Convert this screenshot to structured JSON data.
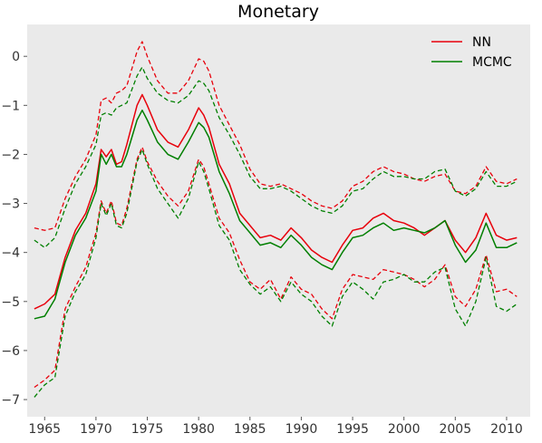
{
  "chart_data": {
    "type": "line",
    "title": "Monetary",
    "xlabel": "",
    "ylabel": "",
    "xlim": [
      1963.3,
      2012.3
    ],
    "ylim": [
      -7.35,
      0.65
    ],
    "x_ticks": [
      1965,
      1970,
      1975,
      1980,
      1985,
      1990,
      1995,
      2000,
      2005,
      2010
    ],
    "x_tick_labels": [
      "1965",
      "1970",
      "1975",
      "1980",
      "1985",
      "1990",
      "1995",
      "2000",
      "2005",
      "2010"
    ],
    "y_ticks": [
      0,
      -1,
      -2,
      -3,
      -4,
      -5,
      -6,
      -7
    ],
    "y_tick_labels": [
      "0",
      "−1",
      "−2",
      "−3",
      "−4",
      "−5",
      "−6",
      "−7"
    ],
    "grid": false,
    "background": "#eaeaea",
    "legend_position": "top-right",
    "legend": [
      {
        "label": "NN",
        "color": "#e8000b"
      },
      {
        "label": "MCMC",
        "color": "#007f00"
      }
    ],
    "series": [
      {
        "name": "NN",
        "role": "mean",
        "color": "#e8000b",
        "dash": "solid",
        "x": [
          1964,
          1965,
          1966,
          1967,
          1968,
          1969,
          1970,
          1970.5,
          1971,
          1971.5,
          1972,
          1972.5,
          1973,
          1974,
          1974.5,
          1975,
          1976,
          1977,
          1978,
          1979,
          1980,
          1980.5,
          1981,
          1982,
          1983,
          1984,
          1985,
          1986,
          1987,
          1988,
          1989,
          1990,
          1991,
          1992,
          1993,
          1994,
          1995,
          1996,
          1997,
          1998,
          1999,
          2000,
          2001,
          2002,
          2003,
          2004,
          2005,
          2006,
          2007,
          2008,
          2009,
          2010,
          2011
        ],
        "y": [
          -5.15,
          -5.05,
          -4.85,
          -4.1,
          -3.55,
          -3.2,
          -2.6,
          -1.9,
          -2.05,
          -1.9,
          -2.2,
          -2.15,
          -1.8,
          -1.0,
          -0.78,
          -1.0,
          -1.5,
          -1.75,
          -1.85,
          -1.5,
          -1.05,
          -1.2,
          -1.45,
          -2.2,
          -2.6,
          -3.2,
          -3.45,
          -3.7,
          -3.65,
          -3.75,
          -3.5,
          -3.7,
          -3.95,
          -4.1,
          -4.2,
          -3.85,
          -3.55,
          -3.5,
          -3.3,
          -3.2,
          -3.35,
          -3.4,
          -3.5,
          -3.65,
          -3.5,
          -3.35,
          -3.75,
          -4.0,
          -3.7,
          -3.2,
          -3.65,
          -3.75,
          -3.7
        ]
      },
      {
        "name": "NN",
        "role": "upper band",
        "color": "#e8000b",
        "dash": "dashed",
        "x": [
          1964,
          1965,
          1966,
          1967,
          1968,
          1969,
          1970,
          1970.5,
          1971,
          1971.5,
          1972,
          1972.5,
          1973,
          1974,
          1974.5,
          1975,
          1976,
          1977,
          1978,
          1979,
          1980,
          1980.5,
          1981,
          1982,
          1983,
          1984,
          1985,
          1986,
          1987,
          1988,
          1989,
          1990,
          1991,
          1992,
          1993,
          1994,
          1995,
          1996,
          1997,
          1998,
          1999,
          2000,
          2001,
          2002,
          2003,
          2004,
          2005,
          2006,
          2007,
          2008,
          2009,
          2010,
          2011
        ],
        "y": [
          -3.5,
          -3.55,
          -3.5,
          -2.9,
          -2.45,
          -2.1,
          -1.6,
          -0.9,
          -0.85,
          -0.95,
          -0.75,
          -0.7,
          -0.6,
          0.1,
          0.3,
          0.0,
          -0.5,
          -0.75,
          -0.75,
          -0.5,
          -0.05,
          -0.1,
          -0.3,
          -1.0,
          -1.4,
          -1.8,
          -2.3,
          -2.6,
          -2.65,
          -2.6,
          -2.7,
          -2.8,
          -2.95,
          -3.05,
          -3.1,
          -2.95,
          -2.65,
          -2.55,
          -2.35,
          -2.25,
          -2.35,
          -2.4,
          -2.5,
          -2.55,
          -2.45,
          -2.4,
          -2.75,
          -2.8,
          -2.65,
          -2.25,
          -2.55,
          -2.6,
          -2.5
        ]
      },
      {
        "name": "NN",
        "role": "lower band",
        "color": "#e8000b",
        "dash": "dashed",
        "x": [
          1964,
          1965,
          1966,
          1967,
          1968,
          1969,
          1970,
          1970.5,
          1971,
          1971.5,
          1972,
          1972.5,
          1973,
          1974,
          1974.5,
          1975,
          1976,
          1977,
          1978,
          1979,
          1980,
          1980.5,
          1981,
          1982,
          1983,
          1984,
          1985,
          1986,
          1987,
          1988,
          1989,
          1990,
          1991,
          1992,
          1993,
          1994,
          1995,
          1996,
          1997,
          1998,
          1999,
          2000,
          2001,
          2002,
          2003,
          2004,
          2005,
          2006,
          2007,
          2008,
          2009,
          2010,
          2011
        ],
        "y": [
          -6.75,
          -6.6,
          -6.4,
          -5.15,
          -4.7,
          -4.3,
          -3.6,
          -2.95,
          -3.2,
          -2.95,
          -3.4,
          -3.45,
          -3.1,
          -2.1,
          -1.85,
          -2.15,
          -2.55,
          -2.85,
          -3.05,
          -2.75,
          -2.1,
          -2.25,
          -2.6,
          -3.3,
          -3.6,
          -4.15,
          -4.6,
          -4.75,
          -4.55,
          -4.95,
          -4.5,
          -4.75,
          -4.85,
          -5.15,
          -5.35,
          -4.75,
          -4.45,
          -4.5,
          -4.55,
          -4.35,
          -4.4,
          -4.45,
          -4.55,
          -4.7,
          -4.55,
          -4.25,
          -4.9,
          -5.1,
          -4.75,
          -4.05,
          -4.8,
          -4.75,
          -4.9
        ]
      },
      {
        "name": "MCMC",
        "role": "mean",
        "color": "#007f00",
        "dash": "solid",
        "x": [
          1964,
          1965,
          1966,
          1967,
          1968,
          1969,
          1970,
          1970.5,
          1971,
          1971.5,
          1972,
          1972.5,
          1973,
          1974,
          1974.5,
          1975,
          1976,
          1977,
          1978,
          1979,
          1980,
          1980.5,
          1981,
          1982,
          1983,
          1984,
          1985,
          1986,
          1987,
          1988,
          1989,
          1990,
          1991,
          1992,
          1993,
          1994,
          1995,
          1996,
          1997,
          1998,
          1999,
          2000,
          2001,
          2002,
          2003,
          2004,
          2005,
          2006,
          2007,
          2008,
          2009,
          2010,
          2011
        ],
        "y": [
          -5.35,
          -5.3,
          -4.95,
          -4.2,
          -3.65,
          -3.3,
          -2.75,
          -2.0,
          -2.2,
          -2.0,
          -2.25,
          -2.25,
          -2.0,
          -1.3,
          -1.1,
          -1.3,
          -1.75,
          -2.0,
          -2.1,
          -1.75,
          -1.35,
          -1.45,
          -1.65,
          -2.35,
          -2.8,
          -3.35,
          -3.6,
          -3.85,
          -3.8,
          -3.9,
          -3.65,
          -3.85,
          -4.1,
          -4.25,
          -4.35,
          -4.0,
          -3.7,
          -3.65,
          -3.5,
          -3.4,
          -3.55,
          -3.5,
          -3.55,
          -3.6,
          -3.5,
          -3.35,
          -3.85,
          -4.2,
          -3.95,
          -3.4,
          -3.9,
          -3.9,
          -3.8
        ]
      },
      {
        "name": "MCMC",
        "role": "upper band",
        "color": "#007f00",
        "dash": "dashed",
        "x": [
          1964,
          1965,
          1966,
          1967,
          1968,
          1969,
          1970,
          1970.5,
          1971,
          1971.5,
          1972,
          1972.5,
          1973,
          1974,
          1974.5,
          1975,
          1976,
          1977,
          1978,
          1979,
          1980,
          1980.5,
          1981,
          1982,
          1983,
          1984,
          1985,
          1986,
          1987,
          1988,
          1989,
          1990,
          1991,
          1992,
          1993,
          1994,
          1995,
          1996,
          1997,
          1998,
          1999,
          2000,
          2001,
          2002,
          2003,
          2004,
          2005,
          2006,
          2007,
          2008,
          2009,
          2010,
          2011
        ],
        "y": [
          -3.75,
          -3.9,
          -3.7,
          -3.1,
          -2.6,
          -2.25,
          -1.8,
          -1.2,
          -1.15,
          -1.2,
          -1.05,
          -1.0,
          -0.95,
          -0.4,
          -0.22,
          -0.45,
          -0.75,
          -0.9,
          -0.95,
          -0.8,
          -0.5,
          -0.55,
          -0.7,
          -1.25,
          -1.6,
          -2.0,
          -2.45,
          -2.7,
          -2.7,
          -2.65,
          -2.75,
          -2.9,
          -3.05,
          -3.15,
          -3.2,
          -3.05,
          -2.75,
          -2.7,
          -2.5,
          -2.35,
          -2.45,
          -2.45,
          -2.5,
          -2.5,
          -2.35,
          -2.3,
          -2.75,
          -2.85,
          -2.7,
          -2.35,
          -2.65,
          -2.65,
          -2.55
        ]
      },
      {
        "name": "MCMC",
        "role": "lower band",
        "color": "#007f00",
        "dash": "dashed",
        "x": [
          1964,
          1965,
          1966,
          1967,
          1968,
          1969,
          1970,
          1970.5,
          1971,
          1971.5,
          1972,
          1972.5,
          1973,
          1974,
          1974.5,
          1975,
          1976,
          1977,
          1978,
          1979,
          1980,
          1980.5,
          1981,
          1982,
          1983,
          1984,
          1985,
          1986,
          1987,
          1988,
          1989,
          1990,
          1991,
          1992,
          1993,
          1994,
          1995,
          1996,
          1997,
          1998,
          1999,
          2000,
          2001,
          2002,
          2003,
          2004,
          2005,
          2006,
          2007,
          2008,
          2009,
          2010,
          2011
        ],
        "y": [
          -6.95,
          -6.7,
          -6.55,
          -5.3,
          -4.8,
          -4.45,
          -3.7,
          -3.0,
          -3.25,
          -3.0,
          -3.45,
          -3.5,
          -3.2,
          -2.15,
          -1.9,
          -2.2,
          -2.7,
          -3.0,
          -3.3,
          -2.9,
          -2.15,
          -2.35,
          -2.7,
          -3.45,
          -3.75,
          -4.35,
          -4.65,
          -4.85,
          -4.7,
          -5.0,
          -4.6,
          -4.85,
          -5.0,
          -5.3,
          -5.5,
          -4.9,
          -4.6,
          -4.75,
          -4.95,
          -4.6,
          -4.55,
          -4.45,
          -4.6,
          -4.6,
          -4.4,
          -4.3,
          -5.15,
          -5.5,
          -5.0,
          -4.1,
          -5.1,
          -5.2,
          -5.05
        ]
      }
    ]
  }
}
